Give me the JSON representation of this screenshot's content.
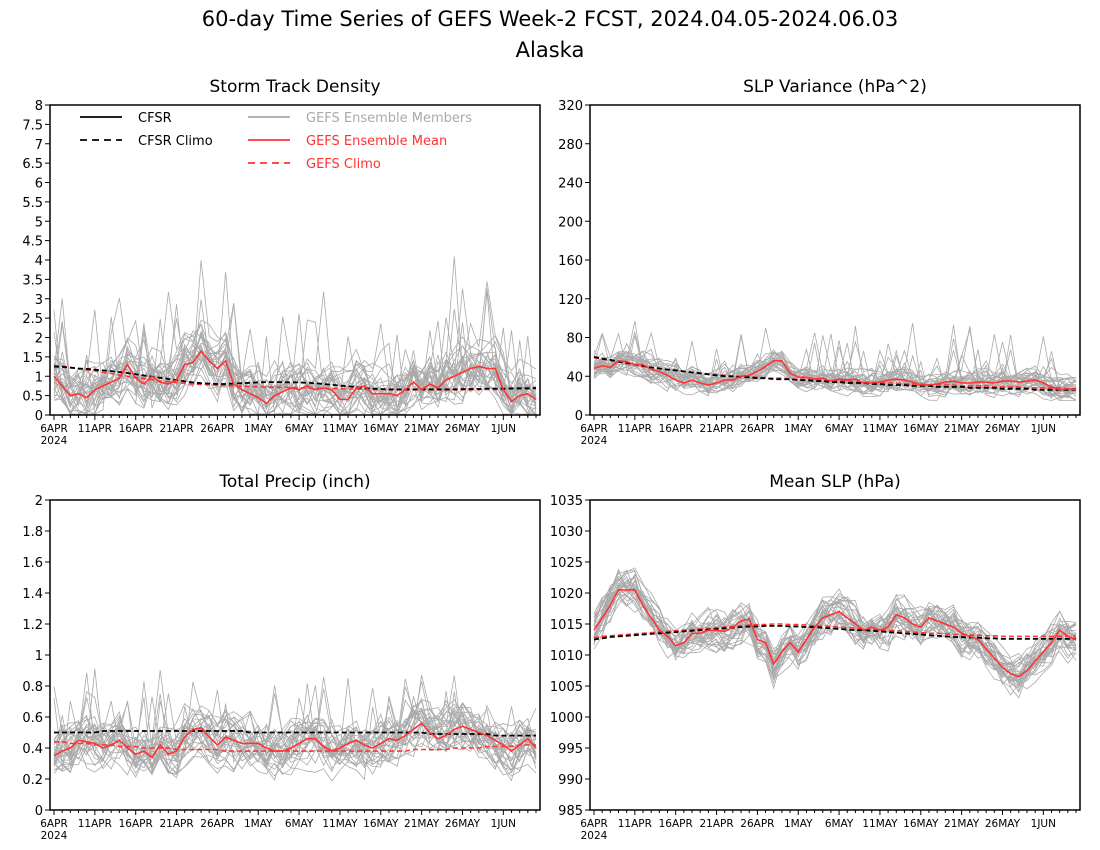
{
  "title": "60-day Time Series of GEFS Week-2 FCST, 2024.04.05-2024.06.03",
  "subtitle": "Alaska",
  "legend": [
    {
      "label": "CFSR",
      "color": "#000000",
      "dash": false
    },
    {
      "label": "CFSR Climo",
      "color": "#000000",
      "dash": true
    },
    {
      "label": "GEFS Ensemble Members",
      "color": "#aaaaaa",
      "dash": false
    },
    {
      "label": "GEFS Ensemble Mean",
      "color": "#ff3333",
      "dash": false
    },
    {
      "label": "GEFS Climo",
      "color": "#ff3333",
      "dash": true
    }
  ],
  "colors": {
    "members": "#aaaaaa",
    "mean": "#ff3333",
    "gefs_climo": "#ff3333",
    "cfsr": "#000000"
  },
  "x_axis": {
    "ticks": [
      "6APR",
      "11APR",
      "16APR",
      "21APR",
      "26APR",
      "1MAY",
      "6MAY",
      "11MAY",
      "16MAY",
      "21MAY",
      "26MAY",
      "1JUN"
    ],
    "year": "2024",
    "days": 60
  },
  "chart_data": [
    {
      "type": "line",
      "title": "Storm Track Density",
      "ylim": [
        0,
        8
      ],
      "yticks": [
        "0",
        "0.5",
        "1",
        "1.5",
        "2",
        "2.5",
        "3",
        "3.5",
        "4",
        "4.5",
        "5",
        "5.5",
        "6",
        "6.5",
        "7",
        "7.5",
        "8"
      ],
      "show_legend": true,
      "member_base": 1.0,
      "member_spread": 1.1,
      "member_count": 30,
      "series": [
        {
          "name": "GEFS Ensemble Mean",
          "values": [
            1.0,
            0.75,
            0.5,
            0.55,
            0.45,
            0.65,
            0.75,
            0.85,
            0.95,
            1.3,
            0.95,
            0.8,
            1.0,
            0.85,
            0.8,
            0.9,
            1.3,
            1.35,
            1.65,
            1.4,
            1.2,
            1.4,
            0.8,
            0.65,
            0.55,
            0.45,
            0.3,
            0.5,
            0.6,
            0.7,
            0.65,
            0.75,
            0.65,
            0.7,
            0.65,
            0.4,
            0.4,
            0.7,
            0.75,
            0.55,
            0.55,
            0.55,
            0.5,
            0.65,
            0.85,
            0.65,
            0.8,
            0.7,
            0.9,
            1.0,
            1.1,
            1.2,
            1.25,
            1.2,
            1.2,
            0.65,
            0.35,
            0.5,
            0.55,
            0.4
          ]
        },
        {
          "name": "CFSR Climo",
          "values": [
            1.25,
            1.24,
            1.22,
            1.2,
            1.19,
            1.17,
            1.15,
            1.13,
            1.11,
            1.08,
            1.05,
            1.02,
            0.99,
            0.96,
            0.93,
            0.9,
            0.87,
            0.84,
            0.82,
            0.81,
            0.8,
            0.8,
            0.81,
            0.82,
            0.83,
            0.84,
            0.85,
            0.85,
            0.85,
            0.84,
            0.84,
            0.83,
            0.82,
            0.8,
            0.78,
            0.76,
            0.74,
            0.72,
            0.7,
            0.68,
            0.67,
            0.66,
            0.66,
            0.66,
            0.66,
            0.66,
            0.66,
            0.66,
            0.66,
            0.66,
            0.67,
            0.67,
            0.67,
            0.68,
            0.68,
            0.68,
            0.69,
            0.69,
            0.69,
            0.7
          ]
        },
        {
          "name": "GEFS Climo",
          "values": [
            1.28,
            1.26,
            1.23,
            1.2,
            1.17,
            1.14,
            1.1,
            1.07,
            1.03,
            1.0,
            0.97,
            0.94,
            0.91,
            0.88,
            0.86,
            0.84,
            0.82,
            0.8,
            0.79,
            0.78,
            0.77,
            0.76,
            0.75,
            0.74,
            0.74,
            0.73,
            0.72,
            0.72,
            0.71,
            0.71,
            0.7,
            0.7,
            0.69,
            0.69,
            0.68,
            0.68,
            0.67,
            0.67,
            0.66,
            0.66,
            0.66,
            0.65,
            0.65,
            0.65,
            0.65,
            0.65,
            0.65,
            0.65,
            0.65,
            0.65,
            0.65,
            0.65,
            0.66,
            0.66,
            0.66,
            0.66,
            0.67,
            0.67,
            0.67,
            0.67
          ]
        }
      ]
    },
    {
      "type": "line",
      "title": "SLP Variance (hPa^2)",
      "ylim": [
        0,
        320
      ],
      "yticks": [
        "0",
        "40",
        "80",
        "120",
        "160",
        "200",
        "240",
        "280",
        "320"
      ],
      "show_legend": false,
      "member_base": 40,
      "member_spread": 20,
      "member_count": 30,
      "series": [
        {
          "name": "GEFS Ensemble Mean",
          "values": [
            48,
            51,
            49,
            56,
            55,
            52,
            52,
            47,
            45,
            41,
            36,
            33,
            36,
            33,
            31,
            33,
            36,
            36,
            40,
            41,
            45,
            50,
            56,
            56,
            43,
            39,
            39,
            37,
            38,
            35,
            37,
            36,
            37,
            33,
            33,
            34,
            36,
            37,
            36,
            34,
            31,
            31,
            32,
            34,
            35,
            33,
            33,
            34,
            34,
            33,
            35,
            35,
            34,
            35,
            36,
            33,
            29,
            26,
            27,
            26
          ]
        },
        {
          "name": "CFSR Climo",
          "values": [
            60,
            58,
            57,
            55,
            54,
            52,
            51,
            49,
            48,
            47,
            46,
            45,
            44,
            43,
            42,
            41,
            40,
            40,
            39,
            39,
            38,
            38,
            37,
            37,
            37,
            36,
            36,
            35,
            35,
            34,
            34,
            33,
            33,
            33,
            32,
            32,
            31,
            31,
            31,
            30,
            30,
            30,
            29,
            29,
            29,
            29,
            28,
            28,
            28,
            28,
            27,
            27,
            27,
            27,
            26,
            26,
            26,
            26,
            26,
            26
          ]
        },
        {
          "name": "GEFS Climo",
          "values": [
            59,
            58,
            56,
            55,
            53,
            52,
            50,
            49,
            48,
            47,
            46,
            45,
            44,
            43,
            42,
            41,
            41,
            40,
            40,
            39,
            39,
            38,
            38,
            38,
            37,
            37,
            37,
            36,
            36,
            35,
            35,
            35,
            34,
            34,
            34,
            33,
            33,
            33,
            32,
            32,
            32,
            31,
            31,
            31,
            31,
            30,
            30,
            30,
            30,
            29,
            29,
            29,
            29,
            28,
            28,
            28,
            28,
            28,
            27,
            27
          ]
        }
      ]
    },
    {
      "type": "line",
      "title": "Total Precip (inch)",
      "ylim": [
        0,
        2
      ],
      "yticks": [
        "0",
        "0.2",
        "0.4",
        "0.6",
        "0.8",
        "1",
        "1.2",
        "1.4",
        "1.6",
        "1.8",
        "2"
      ],
      "show_legend": false,
      "member_base": 0.43,
      "member_spread": 0.25,
      "member_count": 30,
      "series": [
        {
          "name": "GEFS Ensemble Mean",
          "values": [
            0.35,
            0.38,
            0.4,
            0.45,
            0.44,
            0.43,
            0.4,
            0.42,
            0.45,
            0.4,
            0.36,
            0.38,
            0.34,
            0.42,
            0.36,
            0.38,
            0.47,
            0.52,
            0.53,
            0.47,
            0.42,
            0.47,
            0.45,
            0.43,
            0.43,
            0.43,
            0.4,
            0.38,
            0.38,
            0.4,
            0.43,
            0.46,
            0.46,
            0.41,
            0.38,
            0.4,
            0.43,
            0.45,
            0.42,
            0.4,
            0.43,
            0.46,
            0.45,
            0.48,
            0.52,
            0.56,
            0.5,
            0.46,
            0.48,
            0.52,
            0.54,
            0.52,
            0.5,
            0.48,
            0.45,
            0.42,
            0.38,
            0.42,
            0.46,
            0.4
          ]
        },
        {
          "name": "CFSR Climo",
          "values": [
            0.5,
            0.5,
            0.5,
            0.5,
            0.5,
            0.5,
            0.51,
            0.51,
            0.51,
            0.51,
            0.51,
            0.51,
            0.51,
            0.51,
            0.51,
            0.51,
            0.51,
            0.51,
            0.51,
            0.51,
            0.51,
            0.51,
            0.51,
            0.51,
            0.5,
            0.5,
            0.5,
            0.5,
            0.5,
            0.5,
            0.5,
            0.5,
            0.5,
            0.5,
            0.5,
            0.5,
            0.5,
            0.5,
            0.5,
            0.5,
            0.5,
            0.5,
            0.5,
            0.5,
            0.5,
            0.5,
            0.49,
            0.49,
            0.49,
            0.49,
            0.49,
            0.49,
            0.49,
            0.49,
            0.48,
            0.48,
            0.48,
            0.48,
            0.48,
            0.48
          ]
        },
        {
          "name": "GEFS Climo",
          "values": [
            0.44,
            0.44,
            0.43,
            0.43,
            0.43,
            0.42,
            0.42,
            0.42,
            0.41,
            0.41,
            0.41,
            0.4,
            0.4,
            0.4,
            0.4,
            0.39,
            0.39,
            0.39,
            0.39,
            0.39,
            0.39,
            0.38,
            0.38,
            0.38,
            0.38,
            0.38,
            0.38,
            0.38,
            0.38,
            0.38,
            0.38,
            0.38,
            0.38,
            0.38,
            0.38,
            0.38,
            0.38,
            0.38,
            0.38,
            0.38,
            0.38,
            0.38,
            0.38,
            0.38,
            0.39,
            0.39,
            0.39,
            0.39,
            0.39,
            0.4,
            0.4,
            0.4,
            0.4,
            0.41,
            0.41,
            0.41,
            0.41,
            0.42,
            0.42,
            0.42
          ]
        }
      ]
    },
    {
      "type": "line",
      "title": "Mean SLP (hPa)",
      "ylim": [
        985,
        1035
      ],
      "yticks": [
        "985",
        "990",
        "995",
        "1000",
        "1005",
        "1010",
        "1015",
        "1020",
        "1025",
        "1030",
        "1035"
      ],
      "show_legend": false,
      "member_base": 0,
      "member_spread": 5,
      "member_count": 30,
      "series": [
        {
          "name": "GEFS Ensemble Mean",
          "values": [
            1014,
            1016,
            1018,
            1020.5,
            1020.5,
            1020.5,
            1018,
            1016,
            1014,
            1013,
            1011.5,
            1012,
            1013.5,
            1013.5,
            1014,
            1014,
            1013.8,
            1014.5,
            1015.5,
            1015.8,
            1012.5,
            1012,
            1008.5,
            1010.5,
            1012,
            1010.5,
            1012.5,
            1014.5,
            1016,
            1016.5,
            1017,
            1016,
            1015,
            1014,
            1014.5,
            1014,
            1014.5,
            1016.5,
            1016,
            1015,
            1014.5,
            1016,
            1015.5,
            1015,
            1014.5,
            1013.5,
            1013,
            1012.5,
            1011,
            1009.5,
            1008,
            1007,
            1006.5,
            1007.5,
            1009,
            1010.5,
            1012,
            1014,
            1013,
            1012.5
          ]
        },
        {
          "name": "CFSR Climo",
          "values": [
            1012.5,
            1012.7,
            1012.9,
            1013,
            1013.1,
            1013.2,
            1013.3,
            1013.4,
            1013.5,
            1013.6,
            1013.7,
            1013.8,
            1013.9,
            1014,
            1014.1,
            1014.2,
            1014.3,
            1014.4,
            1014.5,
            1014.6,
            1014.6,
            1014.7,
            1014.7,
            1014.7,
            1014.6,
            1014.6,
            1014.5,
            1014.5,
            1014.4,
            1014.3,
            1014.2,
            1014.1,
            1014,
            1014,
            1013.9,
            1013.8,
            1013.7,
            1013.6,
            1013.5,
            1013.4,
            1013.3,
            1013.2,
            1013.1,
            1013,
            1012.9,
            1012.9,
            1012.8,
            1012.8,
            1012.7,
            1012.7,
            1012.6,
            1012.6,
            1012.6,
            1012.6,
            1012.6,
            1012.6,
            1012.6,
            1012.6,
            1012.6,
            1012.6
          ]
        },
        {
          "name": "GEFS Climo",
          "values": [
            1012.8,
            1013,
            1013.1,
            1013.2,
            1013.3,
            1013.4,
            1013.5,
            1013.6,
            1013.7,
            1013.8,
            1013.9,
            1014,
            1014.1,
            1014.2,
            1014.3,
            1014.4,
            1014.5,
            1014.6,
            1014.7,
            1014.8,
            1014.9,
            1014.9,
            1015,
            1015,
            1014.9,
            1014.9,
            1014.8,
            1014.7,
            1014.7,
            1014.6,
            1014.5,
            1014.4,
            1014.3,
            1014.2,
            1014.1,
            1014,
            1014,
            1013.9,
            1013.8,
            1013.7,
            1013.6,
            1013.5,
            1013.5,
            1013.4,
            1013.3,
            1013.3,
            1013.2,
            1013.2,
            1013.1,
            1013.1,
            1013,
            1013,
            1013,
            1013,
            1013,
            1013,
            1013,
            1013,
            1013,
            1013
          ]
        }
      ]
    }
  ]
}
